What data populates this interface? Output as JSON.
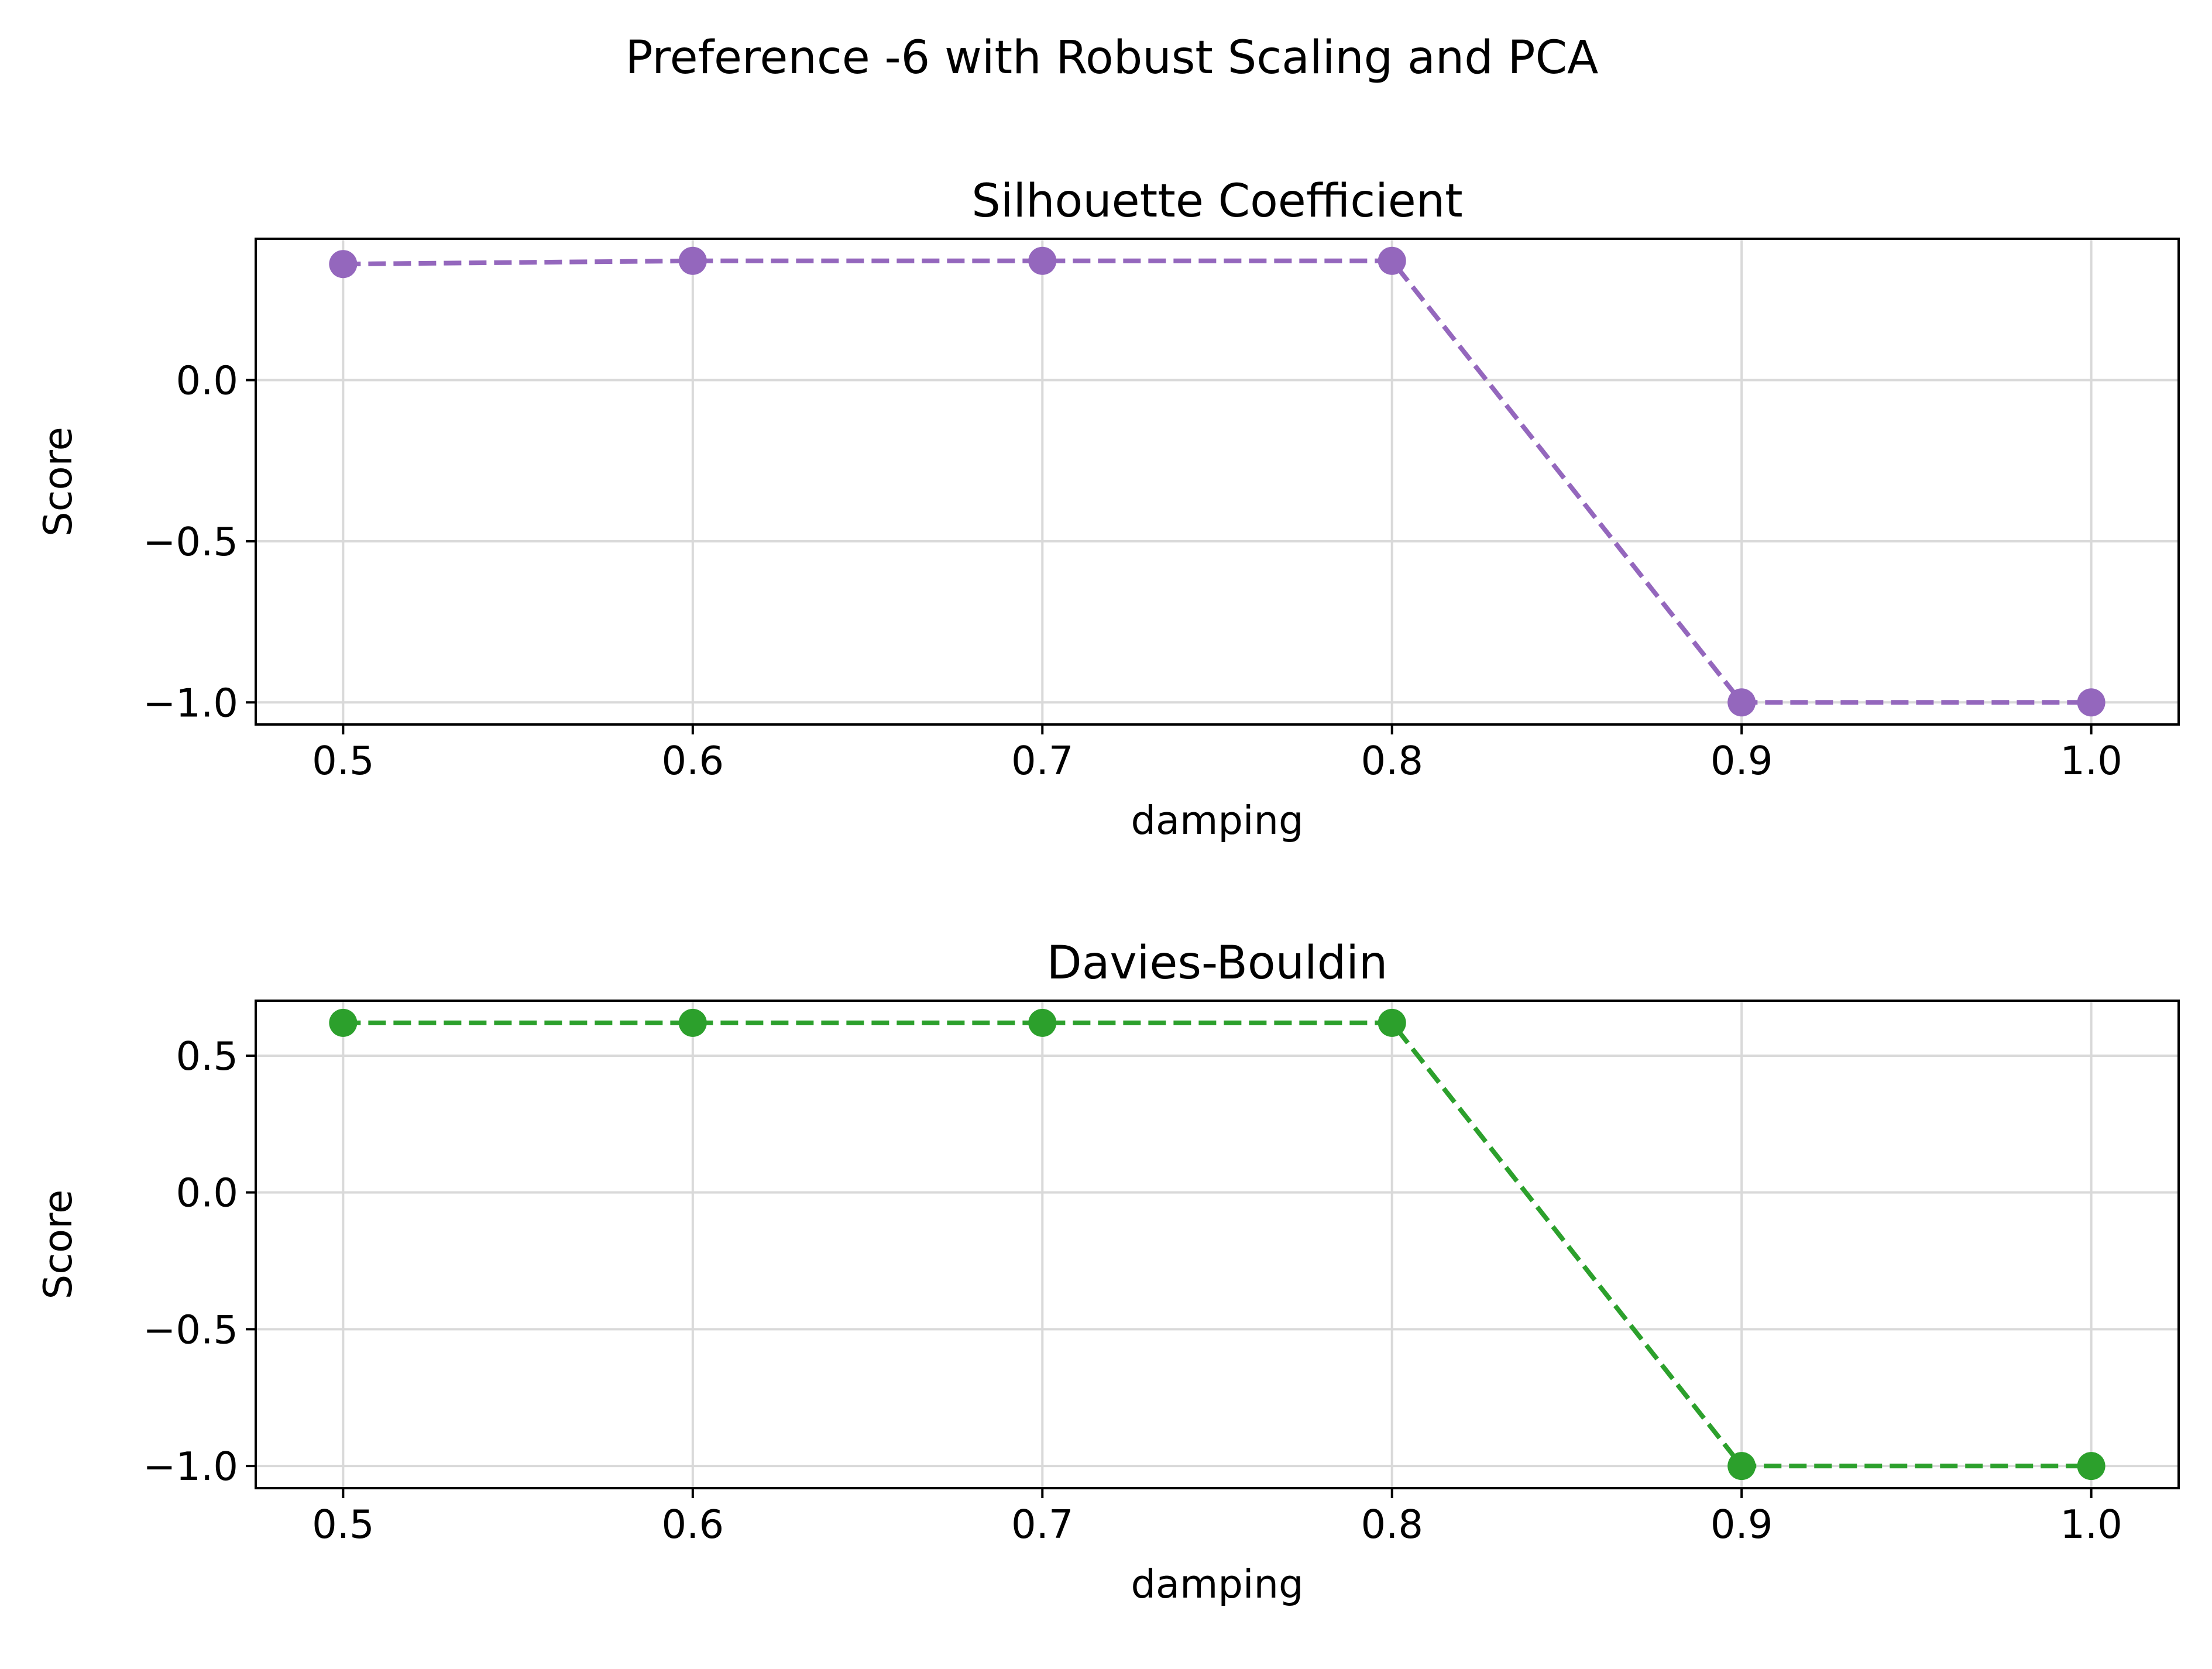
{
  "figure": {
    "suptitle": "Preference -6 with Robust Scaling and PCA"
  },
  "chart_data": [
    {
      "type": "line",
      "title": "Silhouette Coefficient",
      "xlabel": "damping",
      "ylabel": "Score",
      "x": [
        0.5,
        0.6,
        0.7,
        0.8,
        0.9,
        1.0
      ],
      "series": [
        {
          "values": [
            0.36,
            0.37,
            0.37,
            0.37,
            -1.0,
            -1.0
          ],
          "color": "#9467bd"
        }
      ],
      "xticks": [
        0.5,
        0.6,
        0.7,
        0.8,
        0.9,
        1.0
      ],
      "xtick_labels": [
        "0.5",
        "0.6",
        "0.7",
        "0.8",
        "0.9",
        "1.0"
      ],
      "yticks": [
        0.0,
        -0.5,
        -1.0
      ],
      "ytick_labels": [
        "0.0",
        "−0.5",
        "−1.0"
      ],
      "xlim": [
        0.475,
        1.025
      ],
      "ylim": [
        -1.0685,
        0.4385
      ],
      "line_style": "dashed",
      "marker": "circle",
      "grid": true
    },
    {
      "type": "line",
      "title": "Davies-Bouldin",
      "xlabel": "damping",
      "ylabel": "Score",
      "x": [
        0.5,
        0.6,
        0.7,
        0.8,
        0.9,
        1.0
      ],
      "series": [
        {
          "values": [
            0.62,
            0.62,
            0.62,
            0.62,
            -1.0,
            -1.0
          ],
          "color": "#2ca02c"
        }
      ],
      "xticks": [
        0.5,
        0.6,
        0.7,
        0.8,
        0.9,
        1.0
      ],
      "xtick_labels": [
        "0.5",
        "0.6",
        "0.7",
        "0.8",
        "0.9",
        "1.0"
      ],
      "yticks": [
        0.5,
        0.0,
        -0.5,
        -1.0
      ],
      "ytick_labels": [
        "0.5",
        "0.0",
        "−0.5",
        "−1.0"
      ],
      "xlim": [
        0.475,
        1.025
      ],
      "ylim": [
        -1.081,
        0.701
      ],
      "line_style": "dashed",
      "marker": "circle",
      "grid": true
    }
  ]
}
